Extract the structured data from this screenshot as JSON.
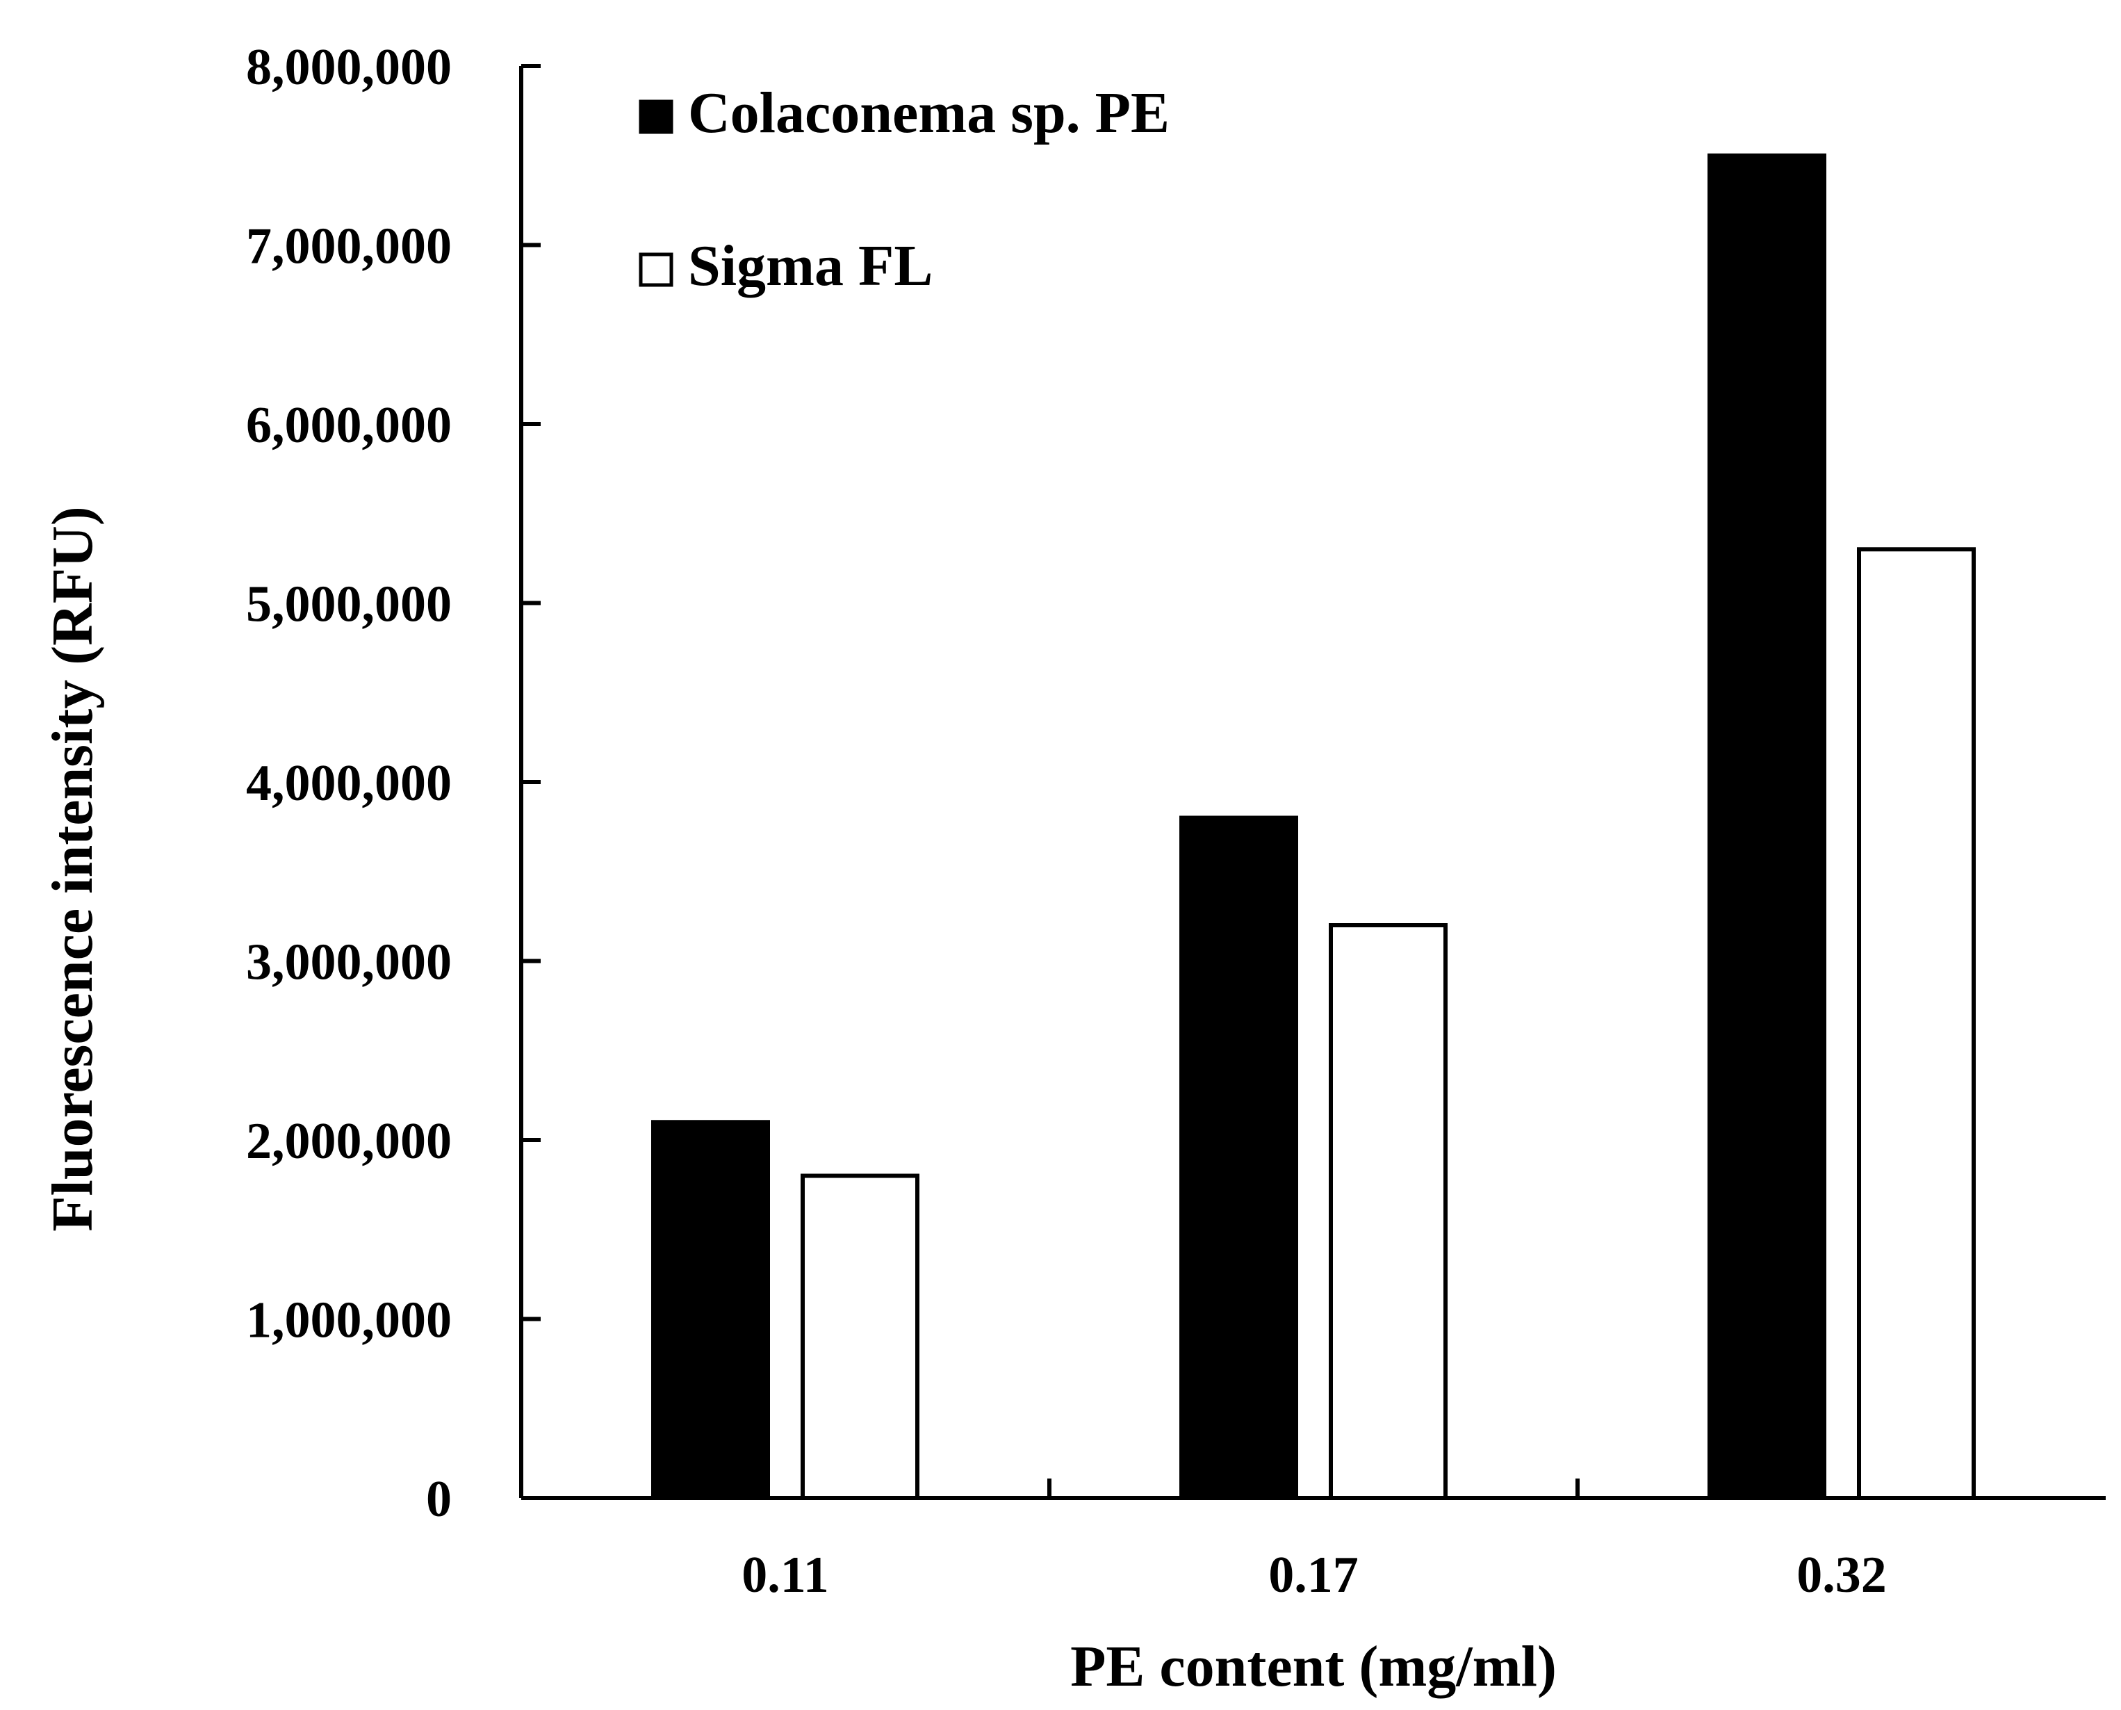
{
  "chart_data": {
    "type": "bar",
    "categories": [
      "0.11",
      "0.17",
      "0.32"
    ],
    "series": [
      {
        "name": "Colaconema sp. PE",
        "values": [
          2100000,
          3800000,
          7500000
        ],
        "fill": "#000000"
      },
      {
        "name": "Sigma FL",
        "values": [
          1800000,
          3200000,
          5300000
        ],
        "fill": "#ffffff"
      }
    ],
    "xlabel": "PE content (mg/ml)",
    "ylabel": "Fluorescence intensity (RFU)",
    "ylim": [
      0,
      8000000
    ],
    "yticks": [
      0,
      1000000,
      2000000,
      3000000,
      4000000,
      5000000,
      6000000,
      7000000,
      8000000
    ],
    "ytick_labels": [
      "0",
      "1,000,000",
      "2,000,000",
      "3,000,000",
      "4,000,000",
      "5,000,000",
      "6,000,000",
      "7,000,000",
      "8,000,000"
    ],
    "grid": false,
    "legend_position": "top-left"
  }
}
